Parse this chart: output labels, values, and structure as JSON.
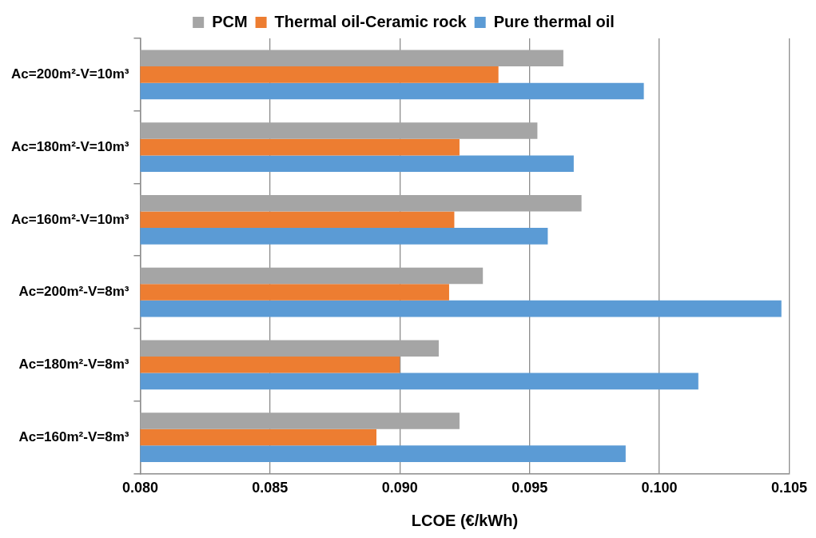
{
  "chart_data": {
    "type": "bar",
    "orientation": "horizontal",
    "xlabel": "LCOE (€/kWh)",
    "categories": [
      "Ac=200m²-V=10m³",
      "Ac=180m²-V=10m³",
      "Ac=160m²-V=10m³",
      "Ac=200m²-V=8m³",
      "Ac=180m²-V=8m³",
      "Ac=160m²-V=8m³"
    ],
    "series": [
      {
        "name": "PCM",
        "color": "#a5a5a5",
        "values": [
          0.0963,
          0.0953,
          0.097,
          0.0932,
          0.0915,
          0.0923
        ]
      },
      {
        "name": "Thermal oil-Ceramic rock",
        "color": "#ed7d31",
        "values": [
          0.0938,
          0.0923,
          0.0921,
          0.0919,
          0.09,
          0.0891
        ]
      },
      {
        "name": "Pure thermal oil",
        "color": "#5b9bd5",
        "values": [
          0.0994,
          0.0967,
          0.0957,
          0.1047,
          0.1015,
          0.0987
        ]
      }
    ],
    "xlim": [
      0.08,
      0.105
    ],
    "xticks": [
      {
        "value": 0.08,
        "label": "0.080"
      },
      {
        "value": 0.085,
        "label": "0.085"
      },
      {
        "value": 0.09,
        "label": "0.090"
      },
      {
        "value": 0.095,
        "label": "0.095"
      },
      {
        "value": 0.1,
        "label": "0.100"
      },
      {
        "value": 0.105,
        "label": "0.105"
      }
    ],
    "grid": "x",
    "legend": "top"
  }
}
